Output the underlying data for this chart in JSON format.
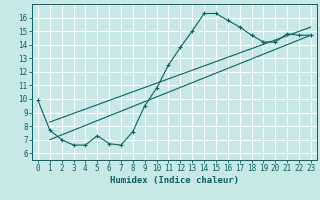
{
  "title": "",
  "xlabel": "Humidex (Indice chaleur)",
  "ylabel": "",
  "background_color": "#c8e8e8",
  "grid_color": "#ffffff",
  "line_color": "#006666",
  "xlim": [
    -0.5,
    23.5
  ],
  "ylim": [
    5.5,
    17.0
  ],
  "yticks": [
    6,
    7,
    8,
    9,
    10,
    11,
    12,
    13,
    14,
    15,
    16
  ],
  "xticks": [
    0,
    1,
    2,
    3,
    4,
    5,
    6,
    7,
    8,
    9,
    10,
    11,
    12,
    13,
    14,
    15,
    16,
    17,
    18,
    19,
    20,
    21,
    22,
    23
  ],
  "jagged_x": [
    0,
    1,
    2,
    3,
    4,
    5,
    6,
    7,
    8,
    9,
    10,
    11,
    12,
    13,
    14,
    15,
    16,
    17,
    18,
    19,
    20,
    21,
    22,
    23
  ],
  "jagged_y": [
    9.9,
    7.7,
    7.0,
    6.6,
    6.6,
    7.3,
    6.7,
    6.6,
    7.6,
    9.5,
    10.8,
    12.5,
    13.8,
    15.0,
    16.3,
    16.3,
    15.8,
    15.3,
    14.7,
    14.2,
    14.2,
    14.8,
    14.7,
    14.7
  ],
  "trend1_x": [
    1,
    23
  ],
  "trend1_y": [
    7.0,
    14.7
  ],
  "trend2_x": [
    1,
    23
  ],
  "trend2_y": [
    8.3,
    15.3
  ],
  "figsize": [
    3.2,
    2.0
  ],
  "dpi": 100,
  "xlabel_fontsize": 6.5,
  "tick_fontsize": 5.5
}
